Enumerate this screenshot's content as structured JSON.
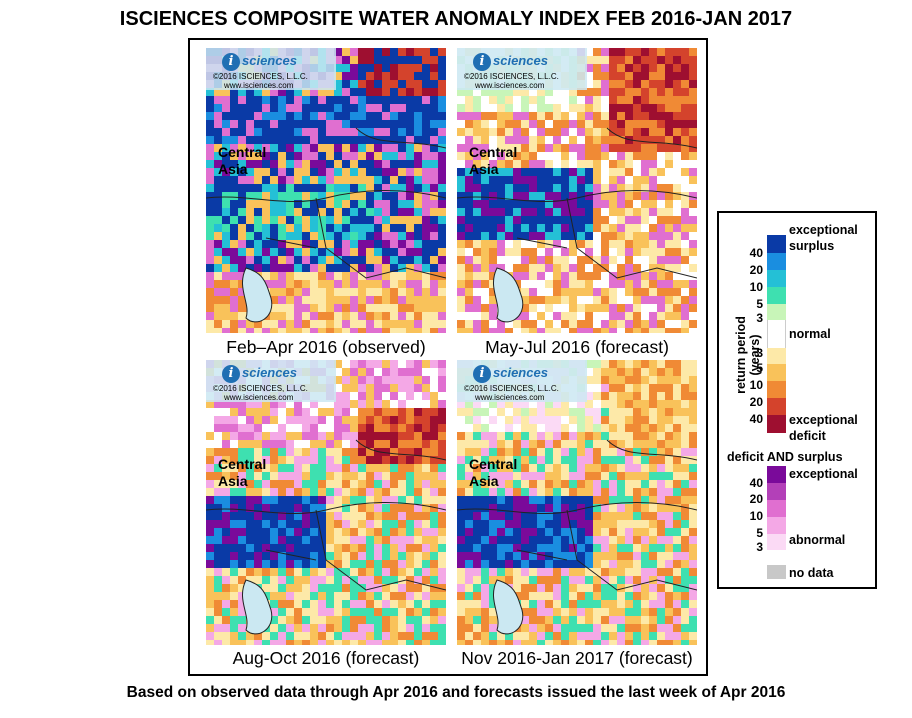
{
  "title": "ISCIENCES COMPOSITE WATER ANOMALY INDEX FEB 2016-JAN 2017",
  "footer": "Based on observed data through Apr 2016 and forecasts issued the last week of Apr 2016",
  "logo": {
    "badge": "i",
    "name": "sciences",
    "copyright": "©2016  ISCIENCES, L.L.C.",
    "url": "www.isciences.com"
  },
  "region_label": [
    "Central",
    "Asia"
  ],
  "maps": [
    {
      "caption": "Feb–Apr 2016 (observed)",
      "style": "wet"
    },
    {
      "caption": "May-Jul 2016 (forecast)",
      "style": "dry"
    },
    {
      "caption": "Aug-Oct 2016 (forecast)",
      "style": "mixed"
    },
    {
      "caption": "Nov 2016-Jan 2017 (forecast)",
      "style": "mixed2"
    }
  ],
  "legend": {
    "axis_label": "return period (years)",
    "surplus_top": "exceptional",
    "surplus_bottom": "surplus",
    "normal": "normal",
    "deficit_top": "exceptional",
    "deficit_bottom": "deficit",
    "both_header": "deficit AND surplus",
    "both_top": "exceptional",
    "both_bottom": "abnormal",
    "no_data": "no data",
    "surplus_ticks": [
      "40",
      "20",
      "10",
      "5",
      "3"
    ],
    "deficit_ticks": [
      "3",
      "5",
      "10",
      "20",
      "40"
    ],
    "both_ticks": [
      "40",
      "20",
      "10",
      "5",
      "3"
    ],
    "colors": {
      "surplus": [
        "#0a3aa6",
        "#1a8ee0",
        "#24c0d6",
        "#3ee0b0",
        "#c8f5b8"
      ],
      "normal": "#ffffff",
      "deficit": [
        "#fde9a8",
        "#f9c25a",
        "#f08a35",
        "#d4432c",
        "#9e0f30"
      ],
      "both": [
        "#7a0a9a",
        "#b340b8",
        "#e06fd0",
        "#f4a8e6",
        "#fbdaf5"
      ],
      "no_data": "#c8c8c8"
    }
  }
}
